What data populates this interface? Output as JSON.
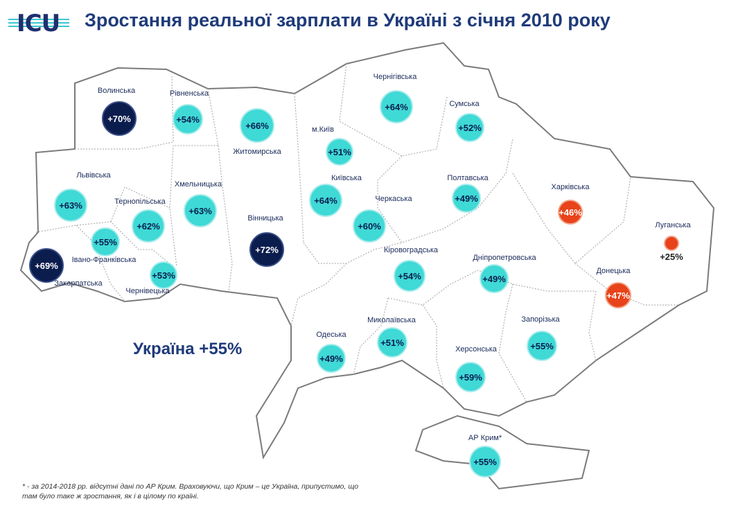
{
  "header": {
    "logo_text": "ICU",
    "title": "Зростання реальної зарплати в Україні з січня 2010 року"
  },
  "colors": {
    "light": "#3fd9d6",
    "dark": "#0b1d4d",
    "warn": "#e8431a"
  },
  "regions": [
    {
      "name": "Волинська",
      "value": "+70%",
      "level": "dark"
    },
    {
      "name": "Рівненська",
      "value": "+54%",
      "level": "light"
    },
    {
      "name": "Житомирська",
      "value": "+66%",
      "level": "light"
    },
    {
      "name": "м.Київ",
      "value": "+51%",
      "level": "light"
    },
    {
      "name": "Чернігівська",
      "value": "+64%",
      "level": "light"
    },
    {
      "name": "Сумська",
      "value": "+52%",
      "level": "light"
    },
    {
      "name": "Львівська",
      "value": "+63%",
      "level": "light"
    },
    {
      "name": "Хмельницька",
      "value": "+63%",
      "level": "light"
    },
    {
      "name": "Тернопільська",
      "value": "+62%",
      "level": "light"
    },
    {
      "name": "Київська",
      "value": "+64%",
      "level": "light"
    },
    {
      "name": "Черкаська",
      "value": "+60%",
      "level": "light"
    },
    {
      "name": "Полтавська",
      "value": "+49%",
      "level": "light"
    },
    {
      "name": "Харківська",
      "value": "+46%",
      "level": "warn"
    },
    {
      "name": "Луганська",
      "value": "+25%",
      "level": "warn"
    },
    {
      "name": "Вінницька",
      "value": "+72%",
      "level": "dark"
    },
    {
      "name": "Івано-Франківська",
      "value": "+55%",
      "level": "light"
    },
    {
      "name": "Закарпатська",
      "value": "+69%",
      "level": "dark"
    },
    {
      "name": "Чернівецька",
      "value": "+53%",
      "level": "light"
    },
    {
      "name": "Кіровоградська",
      "value": "+54%",
      "level": "light"
    },
    {
      "name": "Дніпропетровська",
      "value": "+49%",
      "level": "light"
    },
    {
      "name": "Донецька",
      "value": "+47%",
      "level": "warn"
    },
    {
      "name": "Одеська",
      "value": "+49%",
      "level": "light"
    },
    {
      "name": "Миколаївська",
      "value": "+51%",
      "level": "light"
    },
    {
      "name": "Запорізька",
      "value": "+55%",
      "level": "light"
    },
    {
      "name": "Херсонська",
      "value": "+59%",
      "level": "light"
    },
    {
      "name": "АР Крим*",
      "value": "+55%",
      "level": "light"
    }
  ],
  "total": "Україна +55%",
  "footnote": "* - за 2014-2018 рр. відсутні дані по АР Крим. Враховуючи, що Крим – це Україна, припустимо, що там було таке ж зростання, як і в цілому по країні."
}
